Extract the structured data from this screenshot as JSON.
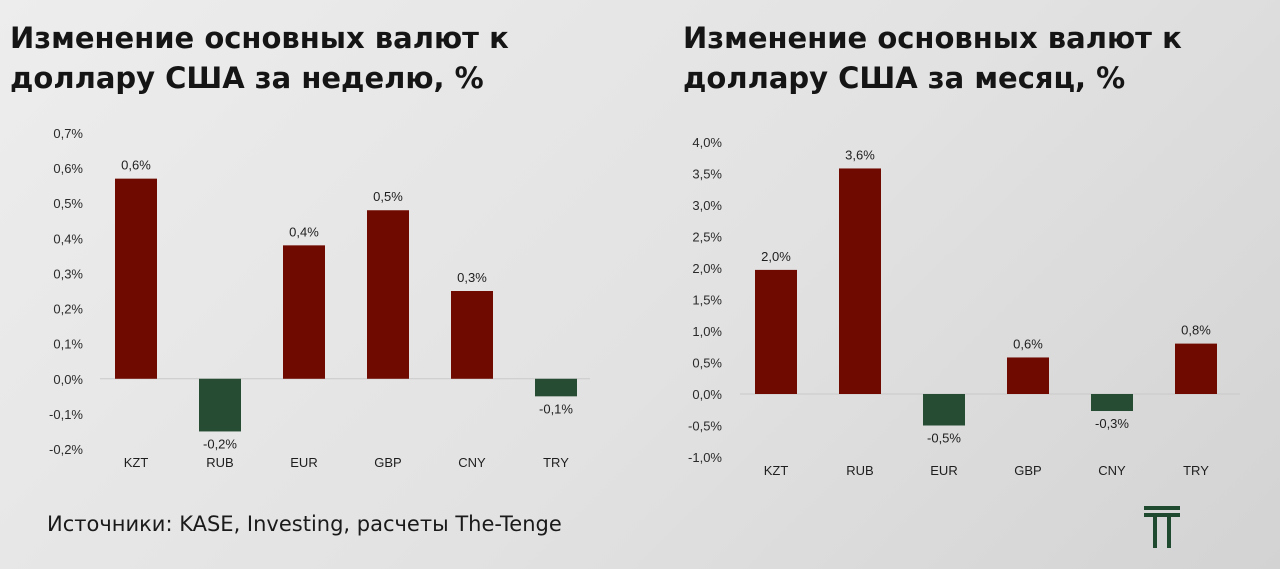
{
  "source_text": "Источники: KASE, Investing, расчеты The-Tenge",
  "colors": {
    "positive": "#6f0a00",
    "negative": "#264d33",
    "logo": "#1f4a30"
  },
  "chart_data": [
    {
      "type": "bar",
      "title": "Изменение основных валют к доллару США за неделю, %",
      "categories": [
        "KZT",
        "RUB",
        "EUR",
        "GBP",
        "CNY",
        "TRY"
      ],
      "values": [
        0.57,
        -0.15,
        0.38,
        0.48,
        0.25,
        -0.05
      ],
      "data_labels": [
        "0,6%",
        "-0,2%",
        "0,4%",
        "0,5%",
        "0,3%",
        "-0,1%"
      ],
      "ylim": [
        -0.2,
        0.7
      ],
      "yticks": [
        0.7,
        0.6,
        0.5,
        0.4,
        0.3,
        0.2,
        0.1,
        0.0,
        -0.1,
        -0.2
      ],
      "ytick_labels": [
        "0,7%",
        "0,6%",
        "0,5%",
        "0,4%",
        "0,3%",
        "0,2%",
        "0,1%",
        "0,0%",
        "-0,1%",
        "-0,2%"
      ],
      "xlabel": "",
      "ylabel": "",
      "grid": false
    },
    {
      "type": "bar",
      "title": "Изменение основных валют к доллару США за месяц, %",
      "categories": [
        "KZT",
        "RUB",
        "EUR",
        "GBP",
        "CNY",
        "TRY"
      ],
      "values": [
        1.97,
        3.58,
        -0.5,
        0.58,
        -0.27,
        0.8
      ],
      "data_labels": [
        "2,0%",
        "3,6%",
        "-0,5%",
        "0,6%",
        "-0,3%",
        "0,8%"
      ],
      "ylim": [
        -1.0,
        4.0
      ],
      "yticks": [
        4.0,
        3.5,
        3.0,
        2.5,
        2.0,
        1.5,
        1.0,
        0.5,
        0.0,
        -0.5,
        -1.0
      ],
      "ytick_labels": [
        "4,0%",
        "3,5%",
        "3,0%",
        "2,5%",
        "2,0%",
        "1,5%",
        "1,0%",
        "0,5%",
        "0,0%",
        "-0,5%",
        "-1,0%"
      ],
      "xlabel": "",
      "ylabel": "",
      "grid": false
    }
  ]
}
